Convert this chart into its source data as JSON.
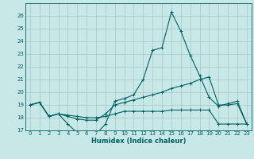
{
  "xlabel": "Humidex (Indice chaleur)",
  "x": [
    0,
    1,
    2,
    3,
    4,
    5,
    6,
    7,
    8,
    9,
    10,
    11,
    12,
    13,
    14,
    15,
    16,
    17,
    18,
    19,
    20,
    21,
    22,
    23
  ],
  "line1": [
    19.0,
    19.2,
    18.1,
    18.3,
    17.5,
    16.8,
    16.7,
    16.7,
    17.5,
    19.3,
    19.5,
    19.8,
    21.0,
    23.3,
    23.5,
    26.3,
    24.8,
    22.9,
    21.3,
    19.6,
    18.9,
    19.1,
    19.3,
    17.5
  ],
  "line2": [
    19.0,
    19.2,
    18.1,
    18.3,
    18.1,
    17.9,
    17.8,
    17.8,
    18.3,
    19.0,
    19.2,
    19.4,
    19.6,
    19.8,
    20.0,
    20.3,
    20.5,
    20.7,
    21.0,
    21.2,
    19.0,
    19.0,
    19.1,
    17.5
  ],
  "line3": [
    19.0,
    19.2,
    18.1,
    18.3,
    18.2,
    18.1,
    18.0,
    18.0,
    18.1,
    18.3,
    18.5,
    18.5,
    18.5,
    18.5,
    18.5,
    18.6,
    18.6,
    18.6,
    18.6,
    18.6,
    17.5,
    17.5,
    17.5,
    17.5
  ],
  "bg_color": "#c8e8e8",
  "grid_color": "#aacccc",
  "line_color": "#006060",
  "ylim": [
    17,
    27
  ],
  "yticks": [
    17,
    18,
    19,
    20,
    21,
    22,
    23,
    24,
    25,
    26
  ],
  "xticks": [
    0,
    1,
    2,
    3,
    4,
    5,
    6,
    7,
    8,
    9,
    10,
    11,
    12,
    13,
    14,
    15,
    16,
    17,
    18,
    19,
    20,
    21,
    22,
    23
  ]
}
